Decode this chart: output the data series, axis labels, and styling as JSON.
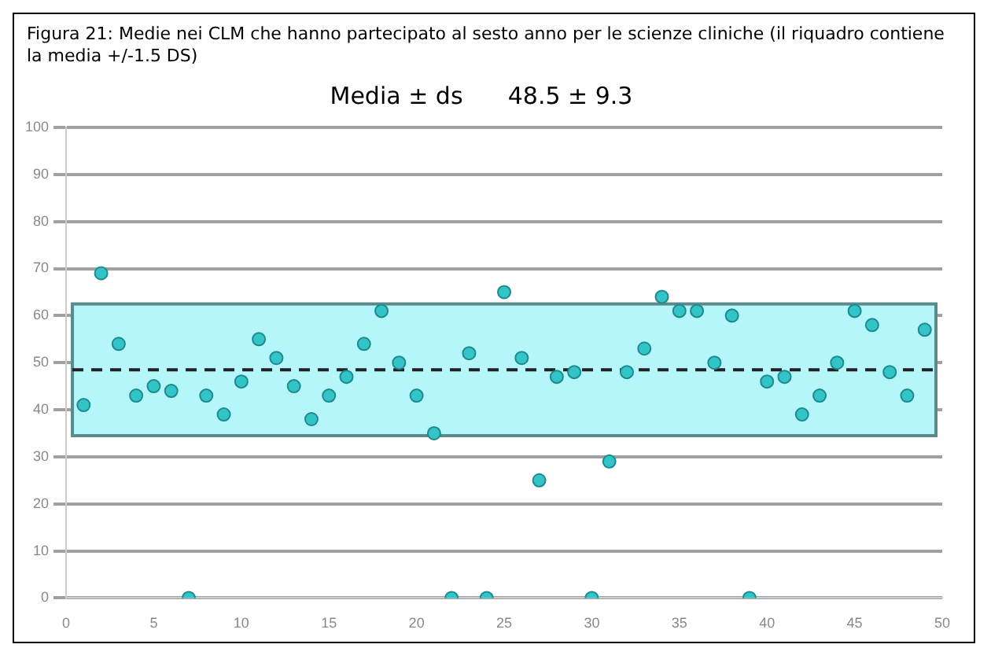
{
  "chart_data": {
    "type": "scatter",
    "title": "Media ± ds      48.5 ± 9.3",
    "annotations": [
      "Figura 21: Medie nei CLM che hanno partecipato al sesto anno per le scienze cliniche (il riquadro contiene la media +/-1.5 DS)"
    ],
    "x": [
      1,
      2,
      3,
      4,
      5,
      6,
      7,
      8,
      9,
      10,
      11,
      12,
      13,
      14,
      15,
      16,
      17,
      18,
      19,
      20,
      21,
      22,
      23,
      24,
      25,
      26,
      27,
      28,
      29,
      30,
      31,
      32,
      33,
      34,
      35,
      36,
      37,
      38,
      39,
      40,
      41,
      42,
      43,
      44,
      45,
      46,
      47,
      48,
      49
    ],
    "series": [
      {
        "color": "#33c4c8",
        "values": [
          41,
          69,
          54,
          43,
          45,
          44,
          0,
          43,
          39,
          46,
          55,
          51,
          45,
          38,
          43,
          47,
          54,
          61,
          50,
          43,
          35,
          0,
          52,
          0,
          65,
          51,
          25,
          47,
          48,
          0,
          29,
          48,
          53,
          64,
          61,
          61,
          50,
          60,
          0,
          46,
          47,
          39,
          43,
          50,
          61,
          58,
          48,
          43,
          57
        ]
      }
    ],
    "xlim": [
      0,
      50
    ],
    "xticks": [
      0,
      5,
      10,
      15,
      20,
      25,
      30,
      35,
      40,
      45,
      50
    ],
    "ylim": [
      0,
      100
    ],
    "yticks": [
      0,
      10,
      20,
      30,
      40,
      50,
      60,
      70,
      80,
      90,
      100
    ],
    "grid": "y",
    "marker": "circle",
    "legend": false,
    "bands": [
      {
        "axis": "y",
        "from": 34.5,
        "to": 62.5,
        "color": "#b4f6fa"
      }
    ],
    "ref_lines": [
      {
        "axis": "y",
        "value": 48.5,
        "color": "#222222",
        "line_style": "dashed"
      }
    ]
  }
}
